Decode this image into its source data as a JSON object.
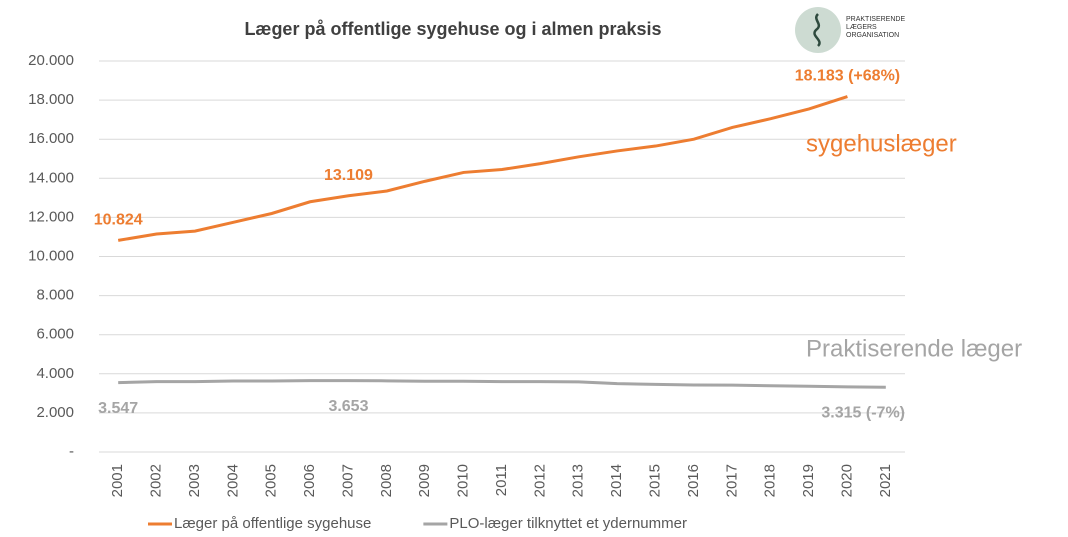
{
  "chart_data": {
    "type": "line",
    "title": "Læger på offentlige sygehuse og i almen praksis",
    "logo_text": "PRAKTISERENDE LÆGERS ORGANISATION",
    "categories": [
      "2001",
      "2002",
      "2003",
      "2004",
      "2005",
      "2006",
      "2007",
      "2008",
      "2009",
      "2010",
      "2011",
      "2012",
      "2013",
      "2014",
      "2015",
      "2016",
      "2017",
      "2018",
      "2019",
      "2020",
      "2021"
    ],
    "series": [
      {
        "name": "Læger på offentlige sygehuse",
        "color": "#ed7d31",
        "values": [
          10824,
          11150,
          11300,
          11750,
          12200,
          12800,
          13109,
          13350,
          13850,
          14300,
          14450,
          14750,
          15100,
          15400,
          15650,
          16000,
          16600,
          17050,
          17550,
          18183,
          null
        ],
        "value_labels": [
          "10.824",
          null,
          null,
          null,
          null,
          null,
          "13.109",
          null,
          null,
          null,
          null,
          null,
          null,
          null,
          null,
          null,
          null,
          null,
          null,
          "18.183  (+68%)",
          null
        ]
      },
      {
        "name": "PLO-læger tilknyttet et ydernummer",
        "color": "#a5a5a5",
        "values": [
          3547,
          3600,
          3600,
          3630,
          3630,
          3650,
          3653,
          3640,
          3620,
          3620,
          3600,
          3600,
          3590,
          3500,
          3460,
          3430,
          3420,
          3390,
          3360,
          3330,
          3315
        ],
        "value_labels": [
          "3.547",
          null,
          null,
          null,
          null,
          null,
          "3.653",
          null,
          null,
          null,
          null,
          null,
          null,
          null,
          null,
          null,
          null,
          null,
          null,
          null,
          "3.315 (-7%)"
        ]
      }
    ],
    "annotations": [
      {
        "text": "sygehuslæger",
        "color": "#ed7d31"
      },
      {
        "text": "Praktiserende læger",
        "color": "#a5a5a5"
      }
    ],
    "ylim": [
      0,
      20000
    ],
    "yticks": [
      {
        "value": 0,
        "label": "-"
      },
      {
        "value": 2000,
        "label": "2.000"
      },
      {
        "value": 4000,
        "label": "4.000"
      },
      {
        "value": 6000,
        "label": "6.000"
      },
      {
        "value": 8000,
        "label": "8.000"
      },
      {
        "value": 10000,
        "label": "10.000"
      },
      {
        "value": 12000,
        "label": "12.000"
      },
      {
        "value": 14000,
        "label": "14.000"
      },
      {
        "value": 16000,
        "label": "16.000"
      },
      {
        "value": 18000,
        "label": "18.000"
      },
      {
        "value": 20000,
        "label": "20.000"
      }
    ],
    "grid": true,
    "legend": "bottom"
  }
}
